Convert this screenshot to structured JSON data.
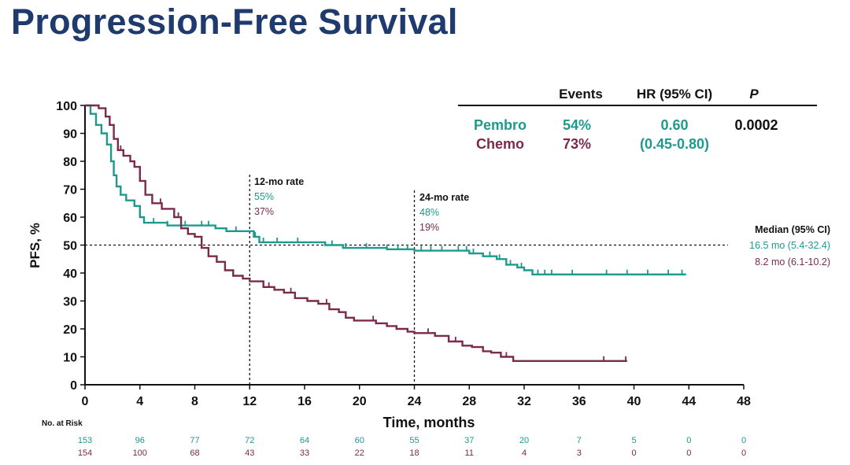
{
  "title": "Progression-Free Survival",
  "colors": {
    "pembro": "#1e9a8c",
    "chemo": "#7a2a4b",
    "title": "#1f3a6d",
    "text": "#111111"
  },
  "table": {
    "headers": [
      "Events",
      "HR (95% CI)",
      "P"
    ],
    "rows": [
      {
        "arm": "Pembro",
        "events": "54%",
        "hr": "0.60",
        "p": "0.0002"
      },
      {
        "arm": "Chemo",
        "events": "73%",
        "hr": "(0.45-0.80)"
      }
    ]
  },
  "annotations": {
    "rate12": {
      "label": "12-mo rate",
      "pembro": "55%",
      "chemo": "37%"
    },
    "rate24": {
      "label": "24-mo rate",
      "pembro": "48%",
      "chemo": "19%"
    },
    "median": {
      "label": "Median (95% CI)",
      "pembro": "16.5 mo (5.4-32.4)",
      "chemo": "8.2 mo (6.1-10.2)"
    }
  },
  "risk": {
    "label": "No. at Risk",
    "pembro": [
      "153",
      "96",
      "77",
      "72",
      "64",
      "60",
      "55",
      "37",
      "20",
      "7",
      "5",
      "0",
      "0"
    ],
    "chemo": [
      "154",
      "100",
      "68",
      "43",
      "33",
      "22",
      "18",
      "11",
      "4",
      "3",
      "0",
      "0",
      "0"
    ]
  },
  "chart_data": {
    "type": "line",
    "title": "Progression-Free Survival",
    "xlabel": "Time, months",
    "ylabel": "PFS, %",
    "xlim": [
      0,
      48
    ],
    "ylim": [
      0,
      100
    ],
    "xticks": [
      0,
      4,
      8,
      12,
      16,
      20,
      24,
      28,
      32,
      36,
      40,
      44,
      48
    ],
    "yticks": [
      0,
      10,
      20,
      30,
      40,
      50,
      60,
      70,
      80,
      90,
      100
    ],
    "grid": false,
    "reference_lines": {
      "horizontal": [
        50
      ],
      "vertical": [
        12,
        24
      ]
    },
    "series": [
      {
        "name": "Pembro",
        "color": "#1e9a8c",
        "points": [
          [
            0,
            100
          ],
          [
            0.4,
            97
          ],
          [
            0.8,
            93
          ],
          [
            1.2,
            90
          ],
          [
            1.6,
            86
          ],
          [
            1.9,
            80
          ],
          [
            2.1,
            75
          ],
          [
            2.3,
            71
          ],
          [
            2.6,
            68
          ],
          [
            3,
            66
          ],
          [
            3.6,
            64
          ],
          [
            4,
            60
          ],
          [
            4.3,
            58
          ],
          [
            6,
            57
          ],
          [
            9.5,
            56
          ],
          [
            10.3,
            55
          ],
          [
            12,
            55
          ],
          [
            12.3,
            53
          ],
          [
            12.7,
            51
          ],
          [
            16,
            51
          ],
          [
            17.5,
            50
          ],
          [
            18.8,
            49
          ],
          [
            22,
            48.5
          ],
          [
            24,
            48
          ],
          [
            27,
            48
          ],
          [
            28,
            47
          ],
          [
            29,
            46
          ],
          [
            30,
            45
          ],
          [
            30.7,
            43
          ],
          [
            31.5,
            42
          ],
          [
            32,
            41
          ],
          [
            32.6,
            39.5
          ],
          [
            43.8,
            39.5
          ]
        ],
        "censor_x": [
          5,
          6,
          7.3,
          8.5,
          9,
          11,
          12.4,
          13,
          14,
          15.5,
          18,
          19,
          20.5,
          22,
          22.8,
          23.5,
          24.5,
          25.2,
          26,
          27.2,
          27.8,
          28.3,
          29.5,
          30.2,
          31,
          31.8,
          33,
          33.5,
          34,
          35.5,
          38,
          39.5,
          41,
          42.5,
          43.5
        ]
      },
      {
        "name": "Chemo",
        "color": "#7a2a4b",
        "points": [
          [
            0,
            100
          ],
          [
            1,
            99
          ],
          [
            1.5,
            96
          ],
          [
            1.8,
            93
          ],
          [
            2.1,
            88
          ],
          [
            2.4,
            84
          ],
          [
            2.8,
            82
          ],
          [
            3.3,
            80
          ],
          [
            3.6,
            78
          ],
          [
            4,
            73
          ],
          [
            4.4,
            68
          ],
          [
            4.9,
            65
          ],
          [
            5.6,
            63
          ],
          [
            6.5,
            60
          ],
          [
            7,
            56
          ],
          [
            7.5,
            54
          ],
          [
            8,
            53
          ],
          [
            8.5,
            49
          ],
          [
            9,
            46
          ],
          [
            9.6,
            44
          ],
          [
            10.2,
            41
          ],
          [
            10.8,
            39
          ],
          [
            11.5,
            38
          ],
          [
            12,
            37
          ],
          [
            13,
            35
          ],
          [
            13.8,
            34
          ],
          [
            14.5,
            33
          ],
          [
            15.3,
            31
          ],
          [
            16.2,
            30
          ],
          [
            17,
            29
          ],
          [
            17.8,
            27
          ],
          [
            18.5,
            26
          ],
          [
            19,
            24
          ],
          [
            19.6,
            23
          ],
          [
            21.2,
            22
          ],
          [
            22,
            21
          ],
          [
            22.7,
            20
          ],
          [
            23.5,
            19
          ],
          [
            24,
            18.5
          ],
          [
            25.5,
            17.5
          ],
          [
            26.5,
            15.5
          ],
          [
            27.5,
            14
          ],
          [
            28.2,
            13.5
          ],
          [
            29,
            12
          ],
          [
            29.6,
            11.5
          ],
          [
            30.3,
            10
          ],
          [
            31.2,
            8.5
          ],
          [
            39.5,
            8.5
          ]
        ],
        "censor_x": [
          2.6,
          3.3,
          5.5,
          6.8,
          13.4,
          15,
          17.6,
          21,
          25,
          27,
          30.7,
          37.8,
          39.4
        ]
      }
    ]
  }
}
